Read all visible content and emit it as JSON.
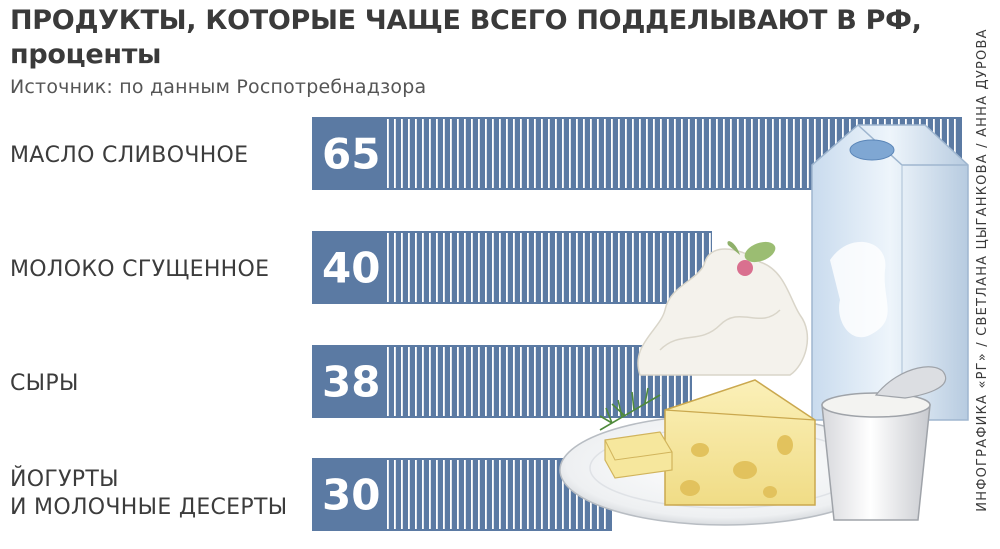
{
  "title": "ПРОДУКТЫ, КОТОРЫЕ ЧАЩЕ ВСЕГО ПОДДЕЛЫВАЮТ В РФ,",
  "subtitle": "проценты",
  "source": "Источник: по данным Роспотребнадзора",
  "credit": "ИНФОГРАФИКА «РГ» / СВЕТЛАНА ЦЫГАНКОВА / АННА ДУРОВА",
  "colors": {
    "bar": "#5b7aa3",
    "value_text": "#ffffff",
    "text": "#3a3a3a"
  },
  "chart_data": {
    "type": "bar",
    "orientation": "horizontal",
    "categories": [
      "МАСЛО СЛИВОЧНОЕ",
      "МОЛОКО СГУЩЕННОЕ",
      "СЫРЫ",
      "ЙОГУРТЫ\nИ МОЛОЧНЫЕ ДЕСЕРТЫ"
    ],
    "values": [
      65,
      40,
      38,
      30
    ],
    "value_labels": [
      "65",
      "40",
      "38",
      "30"
    ],
    "grid": false,
    "legend": "none"
  },
  "illustration": {
    "name": "dairy-products-illustration",
    "items": [
      "milk-carton",
      "whipped-cream",
      "cheese",
      "butter",
      "yogurt-cup",
      "plate",
      "dill"
    ]
  }
}
